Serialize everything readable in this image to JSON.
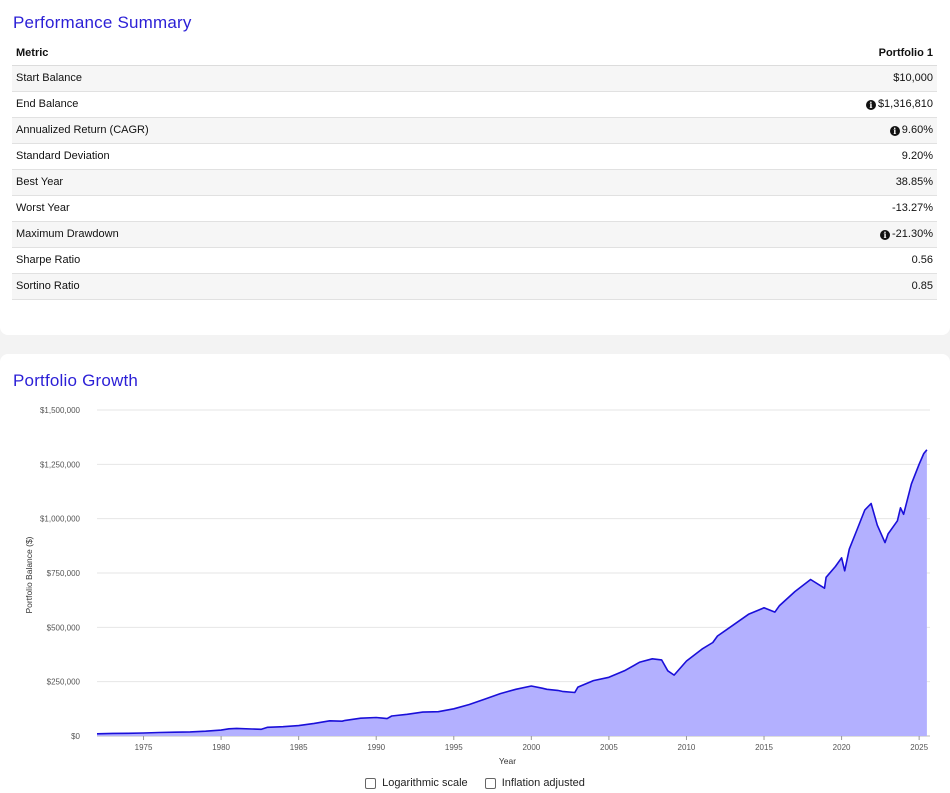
{
  "summary": {
    "title": "Performance Summary",
    "columns": [
      "Metric",
      "Portfolio 1"
    ],
    "rows": [
      {
        "metric": "Start Balance",
        "value": "$10,000",
        "info": false
      },
      {
        "metric": "End Balance",
        "value": "$1,316,810",
        "info": true
      },
      {
        "metric": "Annualized Return (CAGR)",
        "value": "9.60%",
        "info": true
      },
      {
        "metric": "Standard Deviation",
        "value": "9.20%",
        "info": false
      },
      {
        "metric": "Best Year",
        "value": "38.85%",
        "info": false
      },
      {
        "metric": "Worst Year",
        "value": "-13.27%",
        "info": false
      },
      {
        "metric": "Maximum Drawdown",
        "value": "-21.30%",
        "info": true
      },
      {
        "metric": "Sharpe Ratio",
        "value": "0.56",
        "info": false
      },
      {
        "metric": "Sortino Ratio",
        "value": "0.85",
        "info": false
      }
    ],
    "info_icon": "info-circle-icon"
  },
  "growth": {
    "title": "Portfolio Growth",
    "options": [
      {
        "label": "Logarithmic scale",
        "checked": false
      },
      {
        "label": "Inflation adjusted",
        "checked": false
      }
    ]
  },
  "chart_data": {
    "type": "area",
    "xlabel": "Year",
    "ylabel": "Portfolio Balance ($)",
    "xlim": [
      1972,
      2025.7
    ],
    "ylim": [
      0,
      1500000
    ],
    "x_ticks": [
      1975,
      1980,
      1985,
      1990,
      1995,
      2000,
      2005,
      2010,
      2015,
      2020,
      2025
    ],
    "y_ticks": [
      0,
      250000,
      500000,
      750000,
      1000000,
      1250000,
      1500000
    ],
    "y_tick_labels": [
      "$0",
      "$250,000",
      "$500,000",
      "$750,000",
      "$1,000,000",
      "$1,250,000",
      "$1,500,000"
    ],
    "grid": true,
    "colors": {
      "line": "#1a0fd9",
      "fill": "#b3b0ff"
    },
    "series": [
      {
        "x": [
          1972,
          1973,
          1974,
          1975,
          1976,
          1977,
          1978,
          1979,
          1980,
          1980.5,
          1981,
          1982,
          1982.6,
          1983,
          1984,
          1985,
          1986,
          1987,
          1987.8,
          1988,
          1989,
          1990,
          1990.7,
          1991,
          1992,
          1993,
          1994,
          1995,
          1996,
          1997,
          1998,
          1999,
          2000,
          2000.7,
          2001,
          2001.7,
          2002,
          2002.8,
          2003,
          2004,
          2005,
          2006,
          2007,
          2007.8,
          2008.4,
          2008.8,
          2009.2,
          2010,
          2011,
          2011.7,
          2012,
          2013,
          2014,
          2015,
          2015.7,
          2016,
          2017,
          2018,
          2018.9,
          2019,
          2019.6,
          2020,
          2020.2,
          2020.5,
          2021,
          2021.5,
          2021.9,
          2022.3,
          2022.8,
          2023,
          2023.6,
          2023.8,
          2024,
          2024.5,
          2025,
          2025.3,
          2025.5
        ],
        "y": [
          10000,
          12000,
          12500,
          14000,
          16000,
          17500,
          19000,
          22000,
          27000,
          33000,
          35000,
          32000,
          31000,
          40000,
          43000,
          48000,
          58000,
          70000,
          68000,
          72000,
          82000,
          85000,
          80000,
          92000,
          100000,
          110000,
          112000,
          125000,
          145000,
          170000,
          195000,
          215000,
          230000,
          220000,
          215000,
          210000,
          205000,
          200000,
          225000,
          255000,
          270000,
          300000,
          340000,
          355000,
          350000,
          300000,
          280000,
          345000,
          400000,
          430000,
          460000,
          510000,
          560000,
          590000,
          570000,
          600000,
          665000,
          720000,
          680000,
          730000,
          780000,
          820000,
          760000,
          860000,
          950000,
          1040000,
          1070000,
          970000,
          890000,
          930000,
          990000,
          1050000,
          1020000,
          1160000,
          1250000,
          1300000,
          1316810
        ]
      }
    ]
  }
}
